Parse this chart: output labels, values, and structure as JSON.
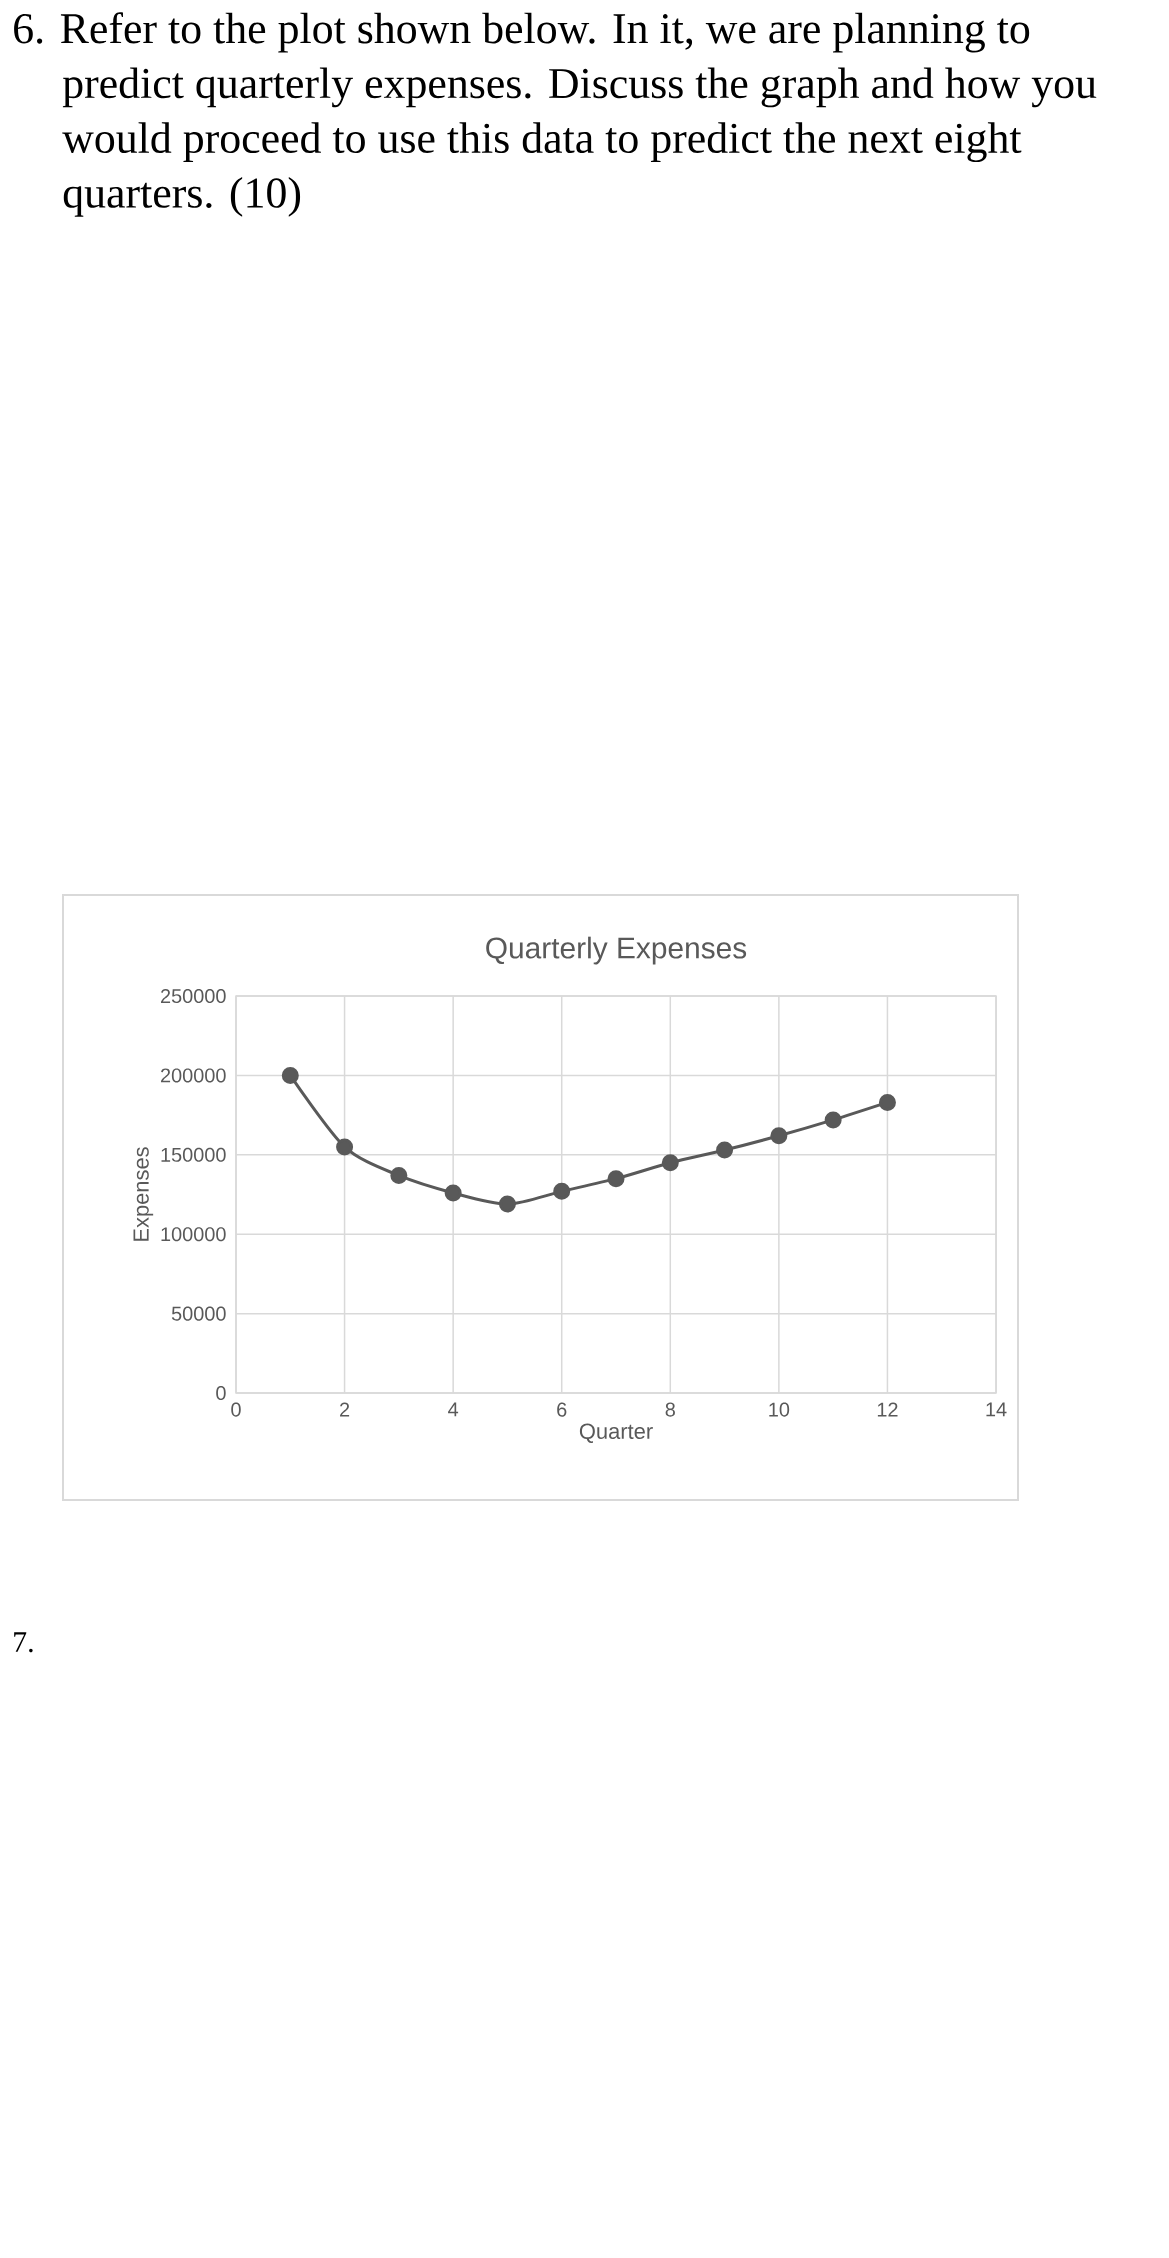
{
  "chart_data": {
    "type": "line",
    "title": "Quarterly Expenses",
    "xlabel": "Quarter",
    "ylabel": "Expenses",
    "annotations": [
      "6. Refer to the plot shown below.  In it, we are planning to predict quarterly expenses.  Discuss the graph and how you would proceed to use this data to predict the next eight quarters.  (10)",
      "7."
    ],
    "x": [
      1,
      2,
      3,
      4,
      5,
      6,
      7,
      8,
      9,
      10,
      11,
      12
    ],
    "series": [
      {
        "color": "#595959",
        "values": [
          200000,
          155000,
          137000,
          126000,
          119000,
          127000,
          135000,
          145000,
          153000,
          162000,
          172000,
          183000
        ]
      }
    ],
    "xlim": [
      0,
      14
    ],
    "xticks": [
      0,
      2,
      4,
      6,
      8,
      10,
      12,
      14
    ],
    "ylim": [
      0,
      250000
    ],
    "yticks": [
      0,
      50000,
      100000,
      150000,
      200000,
      250000
    ],
    "grid": true,
    "marker": "circle",
    "line_style": "solid"
  }
}
